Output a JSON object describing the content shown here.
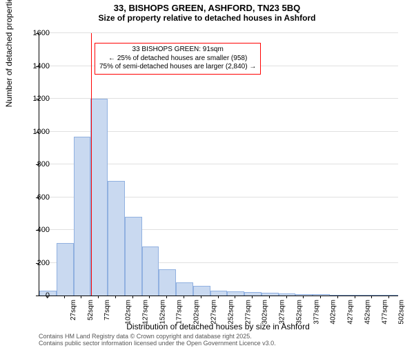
{
  "title": "33, BISHOPS GREEN, ASHFORD, TN23 5BQ",
  "subtitle": "Size of property relative to detached houses in Ashford",
  "y_axis_label": "Number of detached properties",
  "x_axis_label": "Distribution of detached houses by size in Ashford",
  "chart": {
    "type": "histogram",
    "background_color": "#ffffff",
    "grid_color": "#e0e0e0",
    "bar_fill": "#c9d9f0",
    "bar_stroke": "#90b0e0",
    "marker_color": "#ff0000",
    "annotation_border": "#ff0000",
    "ylim": [
      0,
      1600
    ],
    "ytick_step": 200,
    "x_start": 15,
    "x_step": 25,
    "x_tick_start": 27,
    "x_tick_step": 25,
    "x_tick_count": 21,
    "x_tick_unit": "sqm",
    "marker_x": 91,
    "values": [
      30,
      320,
      970,
      1200,
      700,
      480,
      300,
      160,
      80,
      60,
      30,
      25,
      20,
      15,
      12,
      10,
      8,
      6,
      5,
      4,
      3
    ],
    "annotation": {
      "line1": "33 BISHOPS GREEN: 91sqm",
      "line2": "← 25% of detached houses are smaller (958)",
      "line3": "75% of semi-detached houses are larger (2,840) →"
    }
  },
  "footer_line1": "Contains HM Land Registry data © Crown copyright and database right 2025.",
  "footer_line2": "Contains public sector information licensed under the Open Government Licence v3.0."
}
